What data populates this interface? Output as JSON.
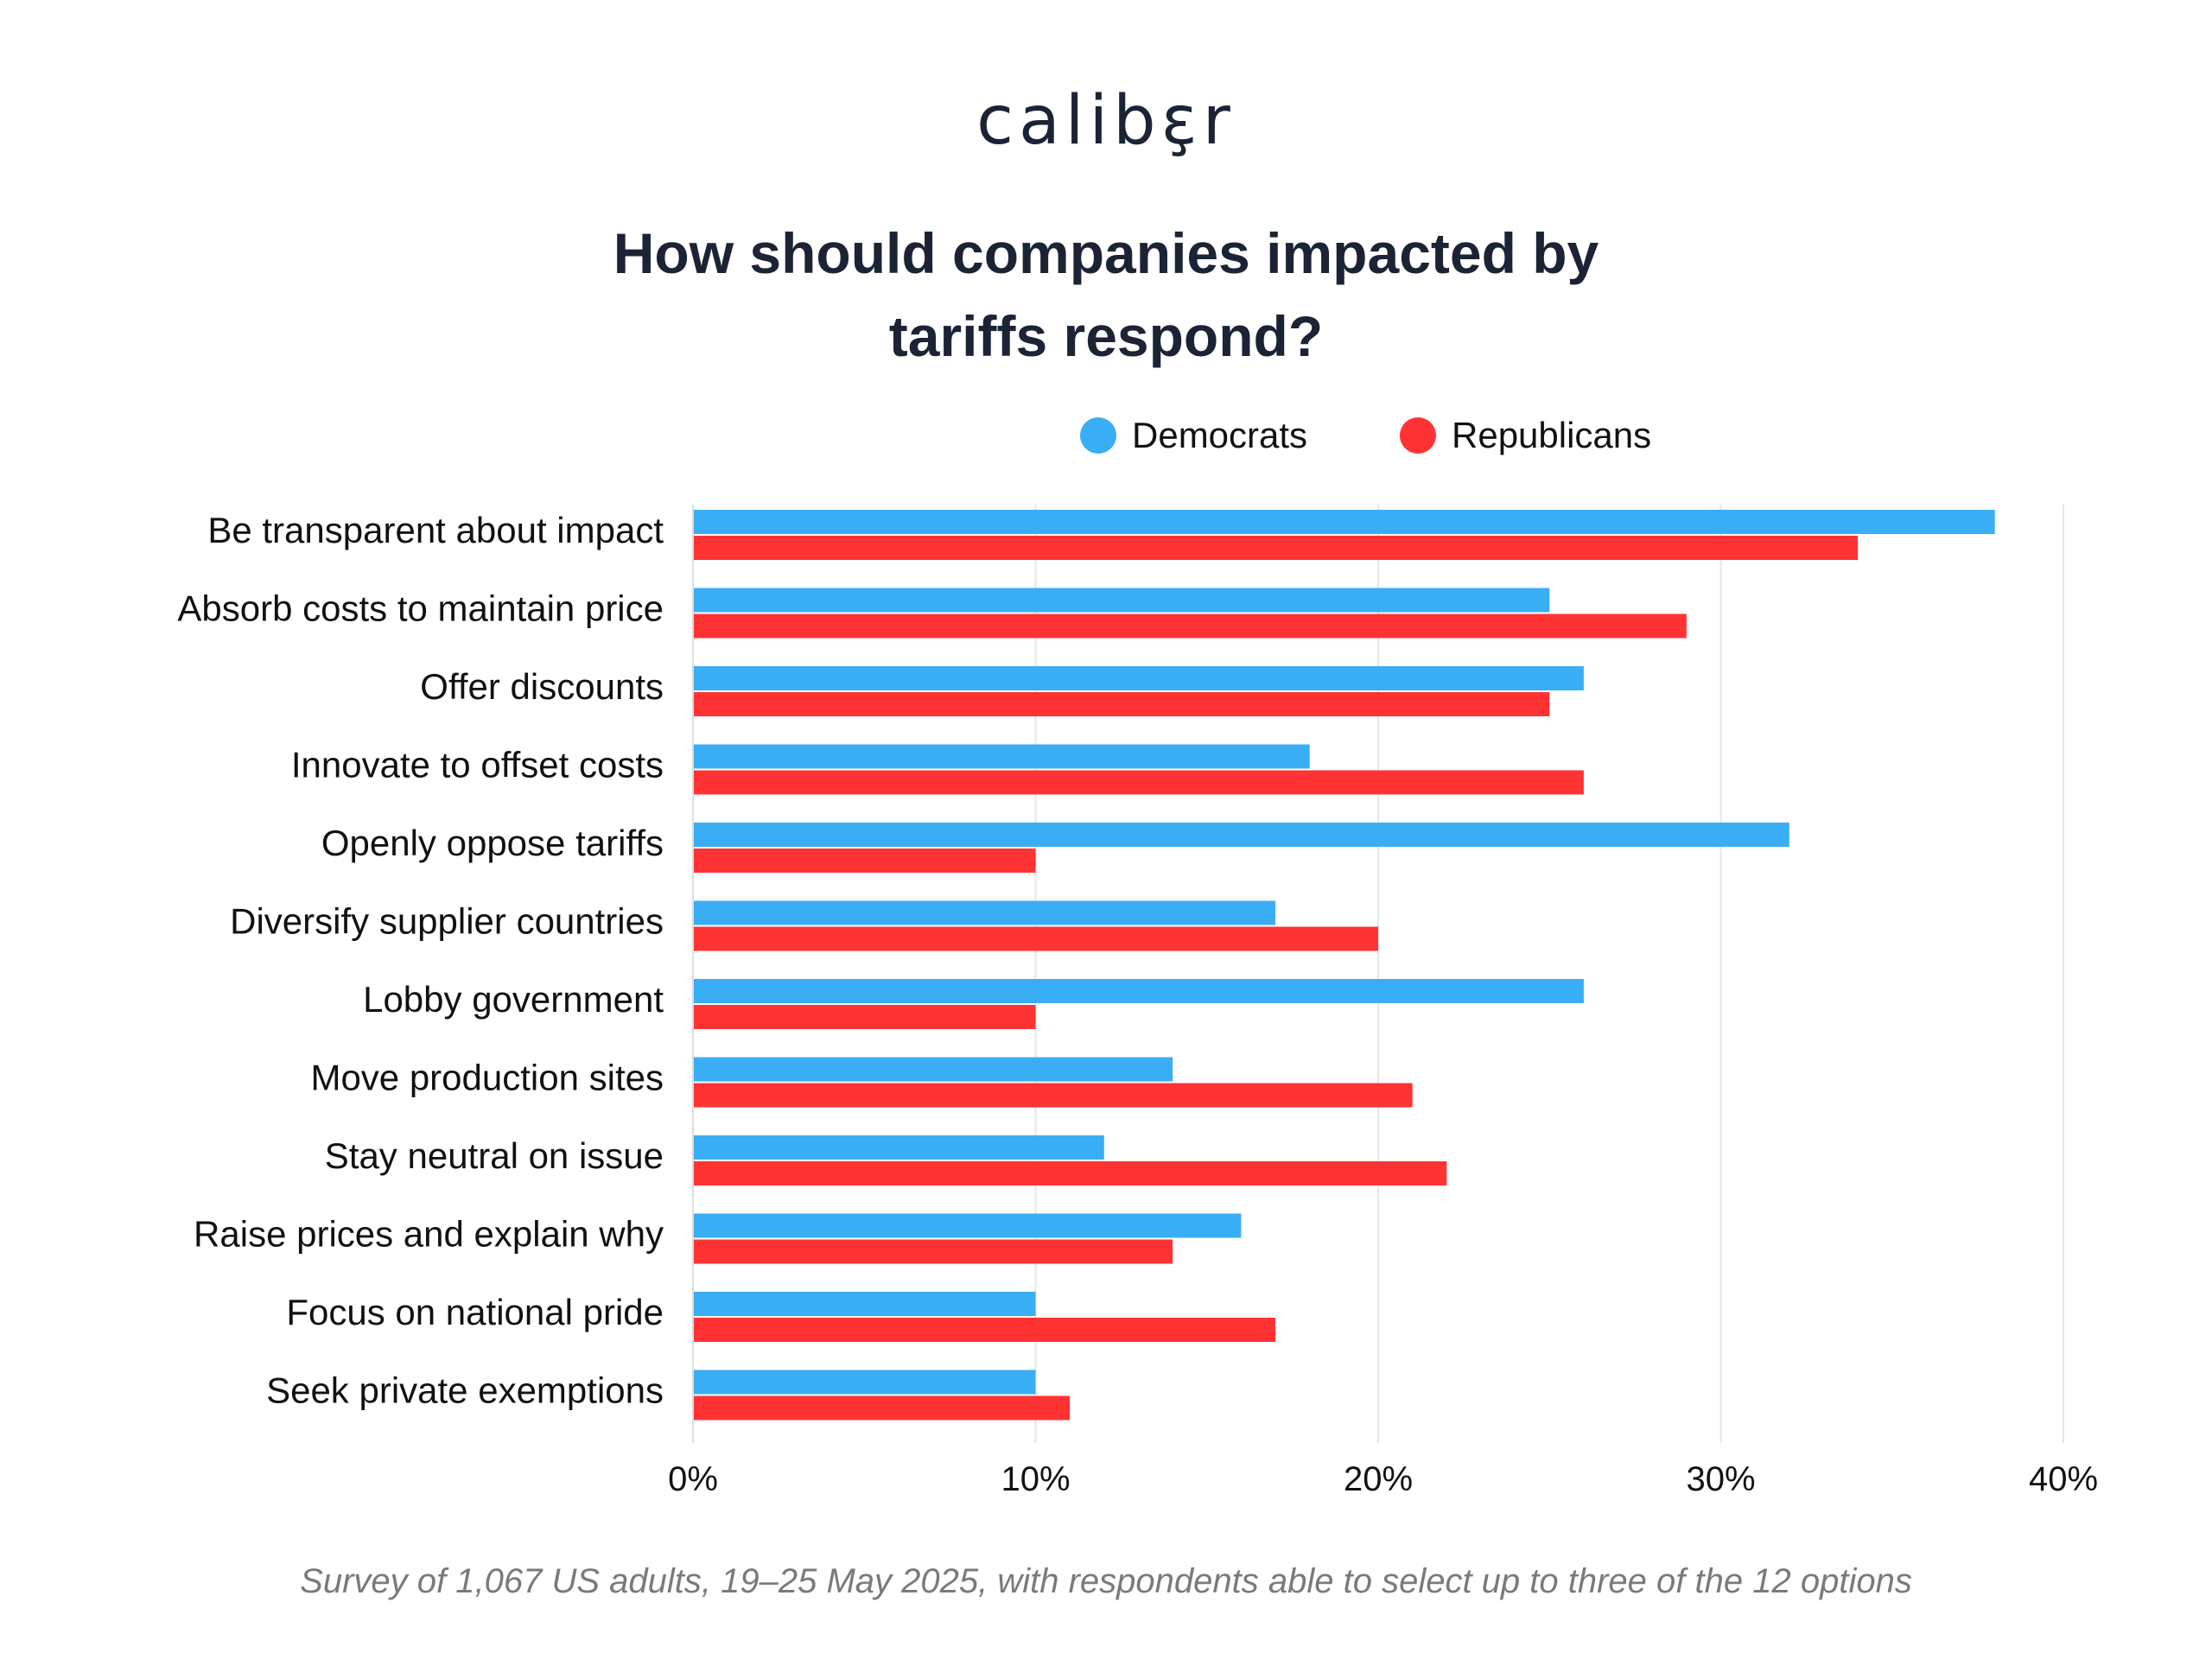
{
  "brand": {
    "logo_text": "calibɛ̧r"
  },
  "title": {
    "line1": "How should companies impacted by",
    "line2": "tariffs respond?"
  },
  "legend": [
    {
      "label": "Democrats",
      "color": "#39aef4"
    },
    {
      "label": "Republicans",
      "color": "#ff3333"
    }
  ],
  "footnote": "Survey of 1,067 US adults, 19–25 May 2025, with respondents able to select up to three of the 12 options",
  "chart_data": {
    "type": "bar",
    "orientation": "horizontal",
    "title": "How should companies impacted by tariffs respond?",
    "categories": [
      "Be transparent about impact",
      "Absorb costs to maintain price",
      "Offer discounts",
      "Innovate to offset costs",
      "Openly oppose tariffs",
      "Diversify supplier countries",
      "Lobby government",
      "Move production sites",
      "Stay neutral on issue",
      "Raise prices and explain why",
      "Focus on national pride",
      "Seek private exemptions"
    ],
    "series": [
      {
        "name": "Democrats",
        "color": "#39aef4",
        "values": [
          38,
          25,
          26,
          18,
          32,
          17,
          26,
          14,
          12,
          16,
          10,
          10
        ]
      },
      {
        "name": "Republicans",
        "color": "#ff3333",
        "values": [
          34,
          29,
          25,
          26,
          10,
          20,
          10,
          21,
          22,
          14,
          17,
          11
        ]
      }
    ],
    "x_ticks": [
      "0%",
      "10%",
      "20%",
      "30%",
      "40%"
    ],
    "xlim": [
      0,
      40
    ],
    "grid": true,
    "legend_position": "top-right"
  }
}
